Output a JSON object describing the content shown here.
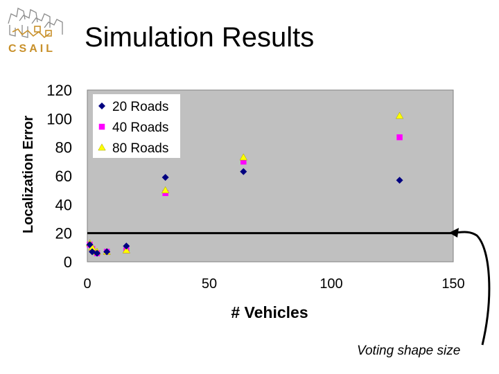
{
  "slide": {
    "title": "Simulation Results",
    "logo_text": "CSAIL",
    "annotation": "Voting shape size"
  },
  "chart_data": {
    "type": "scatter",
    "xlabel": "# Vehicles",
    "ylabel": "Localization Error",
    "xlim": [
      0,
      150
    ],
    "ylim": [
      0,
      120
    ],
    "xticks": [
      "0",
      "50",
      "100",
      "150"
    ],
    "yticks": [
      "0",
      "20",
      "40",
      "60",
      "80",
      "100",
      "120"
    ],
    "grid": false,
    "legend_position": "top-left",
    "plot_background": "#c0c0c0",
    "series": [
      {
        "name": "20 Roads",
        "marker": "diamond",
        "color": "#000080",
        "x": [
          1,
          2,
          4,
          8,
          16,
          32,
          64,
          128
        ],
        "y": [
          12,
          7,
          6,
          7,
          11,
          59,
          63,
          57
        ]
      },
      {
        "name": "40 Roads",
        "marker": "square",
        "color": "#ff00ff",
        "x": [
          1,
          2,
          4,
          8,
          16,
          32,
          64,
          128
        ],
        "y": [
          12,
          9,
          6,
          7,
          8,
          48,
          70,
          87
        ]
      },
      {
        "name": "80 Roads",
        "marker": "triangle",
        "color": "#ffff00",
        "x": [
          1,
          2,
          4,
          8,
          16,
          32,
          64,
          128
        ],
        "y": [
          13,
          10,
          7,
          7,
          8,
          50,
          73,
          102
        ]
      }
    ],
    "reference_line": {
      "y": 20
    }
  }
}
